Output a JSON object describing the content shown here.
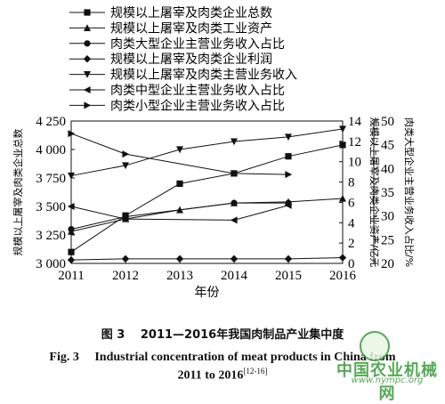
{
  "chart_data": {
    "type": "line",
    "title": "",
    "xlabel": "年份",
    "x": [
      2011,
      2012,
      2013,
      2014,
      2015,
      2016
    ],
    "axes": {
      "left": {
        "label": "规模以上屠宰及肉类企业总数",
        "ylim": [
          3000,
          4250
        ],
        "ticks": [
          3000,
          3250,
          3500,
          3750,
          4000,
          4250
        ],
        "tick_labels": [
          "3 000",
          "3 250",
          "3 500",
          "3 750",
          "4 000",
          "4 250"
        ]
      },
      "right_inner": {
        "label": "规模以上屠宰及肉类企业资产/亿元",
        "ylim": [
          0,
          14
        ],
        "ticks": [
          0,
          2,
          4,
          6,
          8,
          10,
          12,
          14
        ],
        "tick_labels": [
          "0",
          "2",
          "4",
          "6",
          "8",
          "10",
          "12",
          "14"
        ]
      },
      "right_outer": {
        "label": "肉类大型企业主营业务收入占比/%",
        "ylim": [
          20,
          50
        ],
        "ticks": [
          20,
          25,
          30,
          35,
          40,
          45,
          50
        ],
        "tick_labels": [
          "20",
          "25",
          "30",
          "35",
          "40",
          "45",
          "50"
        ]
      }
    },
    "series": [
      {
        "name": "规模以上屠宰及肉类企业总数",
        "marker": "square",
        "axis": "left",
        "x": [
          2011,
          2012,
          2013,
          2014,
          2015,
          2016
        ],
        "values": [
          3100,
          3420,
          3700,
          3790,
          3940,
          4040
        ]
      },
      {
        "name": "规模以上屠宰及肉类工业资产",
        "marker": "triangle-up",
        "axis": "left",
        "x": [
          2011,
          2012,
          2013,
          2014,
          2015,
          2016
        ],
        "values": [
          3280,
          3390,
          3470,
          3530,
          3540,
          3570
        ]
      },
      {
        "name": "肉类大型企业主营业务收入占比",
        "marker": "circle",
        "axis": "left",
        "x": [
          2011,
          2012,
          2014,
          2015
        ],
        "values": [
          3300,
          3410,
          3530,
          3530
        ]
      },
      {
        "name": "规模以上屠宰及肉类企业利润",
        "marker": "diamond",
        "axis": "left",
        "x": [
          2011,
          2012,
          2013,
          2014,
          2015,
          2016
        ],
        "values": [
          3030,
          3040,
          3040,
          3040,
          3040,
          3050
        ]
      },
      {
        "name": "规模以上屠宰及肉类主营业务收入",
        "marker": "triangle-down",
        "axis": "left",
        "x": [
          2011,
          2012,
          2013,
          2014,
          2015,
          2016
        ],
        "values": [
          3770,
          3860,
          4000,
          4070,
          4110,
          4180
        ]
      },
      {
        "name": "肉类中型企业主营业务收入占比",
        "marker": "triangle-left",
        "axis": "left",
        "x": [
          2011,
          2012,
          2014,
          2015
        ],
        "values": [
          3500,
          3390,
          3380,
          3510
        ]
      },
      {
        "name": "肉类小型企业主营业务收入占比",
        "marker": "triangle-right",
        "axis": "left",
        "x": [
          2011,
          2012,
          2014,
          2015
        ],
        "values": [
          4140,
          3960,
          3790,
          3780
        ]
      }
    ],
    "legend": "top"
  },
  "caption": {
    "zh": "图 3　 2011—2016年我国肉制品产业集中度",
    "en_line1": "Fig. 3　 Industrial concentration of meat products in China from",
    "en_line2": "2011 to 2016",
    "en_ref": "[12-16]"
  },
  "watermark": {
    "text": "中国农业机械网",
    "url": "www.nympc.org"
  }
}
